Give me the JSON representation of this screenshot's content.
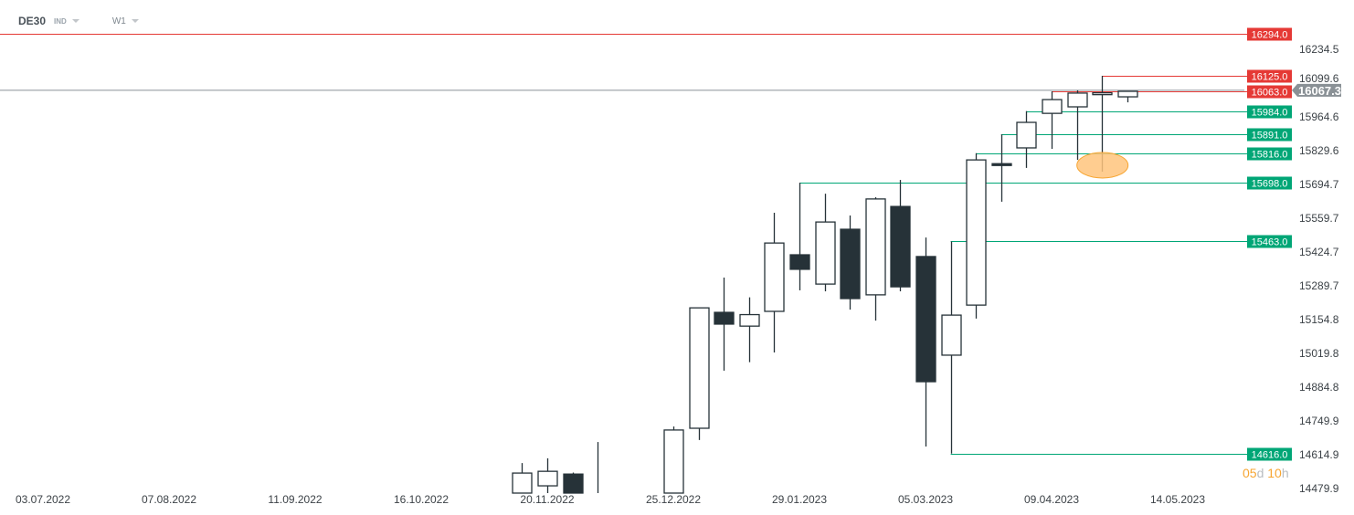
{
  "header": {
    "symbol": "DE30",
    "market": "IND",
    "timeframe": "W1"
  },
  "countdown": {
    "days": "05",
    "d": "d",
    "hours": "10",
    "h": "h"
  },
  "current_price": "16067.3",
  "colors": {
    "bull": "#ffffff",
    "bear": "#263238",
    "red": "#e53935",
    "green": "#00a676",
    "grey": "#8a9196",
    "highlight": "#ffc47d"
  },
  "chart_data": {
    "type": "candlestick",
    "ylim": [
      14479.9,
      16234.5
    ],
    "y_ticks": [
      "16234.5",
      "16099.6",
      "15964.6",
      "15829.6",
      "15694.7",
      "15559.7",
      "15424.7",
      "15289.7",
      "15154.8",
      "15019.8",
      "14884.8",
      "14749.9",
      "14614.9",
      "14479.9"
    ],
    "x_ticks": [
      {
        "week": 0,
        "label": "03.07.2022"
      },
      {
        "week": 5,
        "label": "07.08.2022"
      },
      {
        "week": 10,
        "label": "11.09.2022"
      },
      {
        "week": 15,
        "label": "16.10.2022"
      },
      {
        "week": 20,
        "label": "20.11.2022"
      },
      {
        "week": 25,
        "label": "25.12.2022"
      },
      {
        "week": 30,
        "label": "29.01.2023"
      },
      {
        "week": 35,
        "label": "05.03.2023"
      },
      {
        "week": 40,
        "label": "09.04.2023"
      },
      {
        "week": 45,
        "label": "14.05.2023"
      }
    ],
    "candles": [
      {
        "w": 19,
        "o": 14450,
        "h": 14578,
        "l": 14420,
        "c": 14538
      },
      {
        "w": 20,
        "o": 14487,
        "h": 14597,
        "l": 14440,
        "c": 14545
      },
      {
        "w": 21,
        "o": 14534,
        "h": 14540,
        "l": 14400,
        "c": 14440
      },
      {
        "w": 22,
        "o": 14300,
        "h": 14662,
        "l": 14200,
        "c": 14350
      },
      {
        "w": 25,
        "o": 14400,
        "h": 14724,
        "l": 14380,
        "c": 14710
      },
      {
        "w": 26,
        "o": 14717,
        "h": 15200,
        "l": 14670,
        "c": 15198
      },
      {
        "w": 27,
        "o": 15180,
        "h": 15319,
        "l": 14947,
        "c": 15133
      },
      {
        "w": 28,
        "o": 15125,
        "h": 15240,
        "l": 14981,
        "c": 15171
      },
      {
        "w": 29,
        "o": 15184,
        "h": 15578,
        "l": 15020,
        "c": 15457
      },
      {
        "w": 30,
        "o": 15410,
        "h": 15698,
        "l": 15268,
        "c": 15352
      },
      {
        "w": 31,
        "o": 15293,
        "h": 15654,
        "l": 15264,
        "c": 15541
      },
      {
        "w": 32,
        "o": 15512,
        "h": 15567,
        "l": 15191,
        "c": 15235
      },
      {
        "w": 33,
        "o": 15250,
        "h": 15640,
        "l": 15147,
        "c": 15633
      },
      {
        "w": 34,
        "o": 15603,
        "h": 15709,
        "l": 15264,
        "c": 15282
      },
      {
        "w": 35,
        "o": 15403,
        "h": 15479,
        "l": 14644,
        "c": 14903
      },
      {
        "w": 36,
        "o": 15009,
        "h": 15463,
        "l": 14616,
        "c": 15169
      },
      {
        "w": 37,
        "o": 15209,
        "h": 15816,
        "l": 15155,
        "c": 15789
      },
      {
        "w": 38,
        "o": 15774,
        "h": 15891,
        "l": 15622,
        "c": 15771
      },
      {
        "w": 39,
        "o": 15837,
        "h": 15984,
        "l": 15757,
        "c": 15939
      },
      {
        "w": 40,
        "o": 15975,
        "h": 16063,
        "l": 15833,
        "c": 16030
      },
      {
        "w": 41,
        "o": 16001,
        "h": 16067,
        "l": 15789,
        "c": 16056
      },
      {
        "w": 42,
        "o": 16053,
        "h": 16125,
        "l": 15742,
        "c": 16057
      },
      {
        "w": 43,
        "o": 16041,
        "h": 16063,
        "l": 16019,
        "c": 16063
      }
    ],
    "levels": [
      {
        "price": 16294.0,
        "label": "16294.0",
        "color": "red",
        "from_week": -2
      },
      {
        "price": 16125.0,
        "label": "16125.0",
        "color": "red",
        "from_week": 42
      },
      {
        "price": 16063.0,
        "label": "16063.0",
        "color": "red",
        "from_week": 40
      },
      {
        "price": 15984.0,
        "label": "15984.0",
        "color": "green",
        "from_week": 39
      },
      {
        "price": 15891.0,
        "label": "15891.0",
        "color": "green",
        "from_week": 38
      },
      {
        "price": 15816.0,
        "label": "15816.0",
        "color": "green",
        "from_week": 37
      },
      {
        "price": 15698.0,
        "label": "15698.0",
        "color": "green",
        "from_week": 30
      },
      {
        "price": 15463.0,
        "label": "15463.0",
        "color": "green",
        "from_week": 36
      },
      {
        "price": 14616.0,
        "label": "14616.0",
        "color": "green",
        "from_week": 36
      }
    ],
    "highlight": {
      "week": 42,
      "price": 15775
    }
  }
}
